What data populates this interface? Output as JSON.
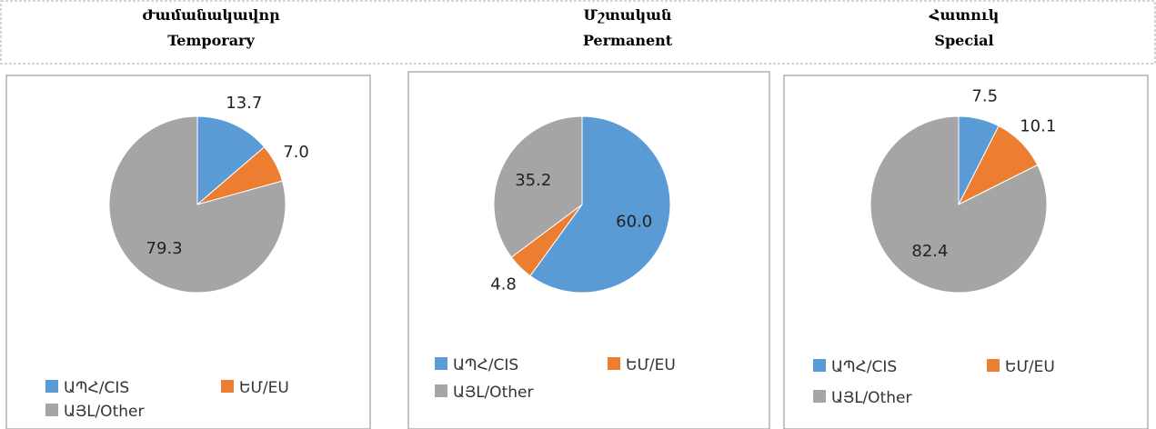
{
  "chart_data": [
    {
      "type": "pie",
      "title": "Ժամանակավոր",
      "subtitle": "Temporary",
      "categories": [
        "ԱՊՀ/CIS",
        "ԵՄ/EU",
        "ԱՅԼ/Other"
      ],
      "colors": [
        "#5b9bd5",
        "#ed7d31",
        "#a5a5a5"
      ],
      "values": [
        13.7,
        7.0,
        79.3
      ],
      "value_labels": [
        "13.7",
        "7.0",
        "79.3"
      ]
    },
    {
      "type": "pie",
      "title": "Մշտական",
      "subtitle": "Permanent",
      "categories": [
        "ԱՊՀ/CIS",
        "ԵՄ/EU",
        "ԱՅԼ/Other"
      ],
      "colors": [
        "#5b9bd5",
        "#ed7d31",
        "#a5a5a5"
      ],
      "values": [
        60.0,
        4.8,
        35.2
      ],
      "value_labels": [
        "60.0",
        "4.8",
        "35.2"
      ]
    },
    {
      "type": "pie",
      "title": "Հատուկ",
      "subtitle": "Special",
      "categories": [
        "ԱՊՀ/CIS",
        "ԵՄ/EU",
        "ԱՅԼ/Other"
      ],
      "colors": [
        "#5b9bd5",
        "#ed7d31",
        "#a5a5a5"
      ],
      "values": [
        7.5,
        10.1,
        82.4
      ],
      "value_labels": [
        "7.5",
        "10.1",
        "82.4"
      ]
    }
  ]
}
